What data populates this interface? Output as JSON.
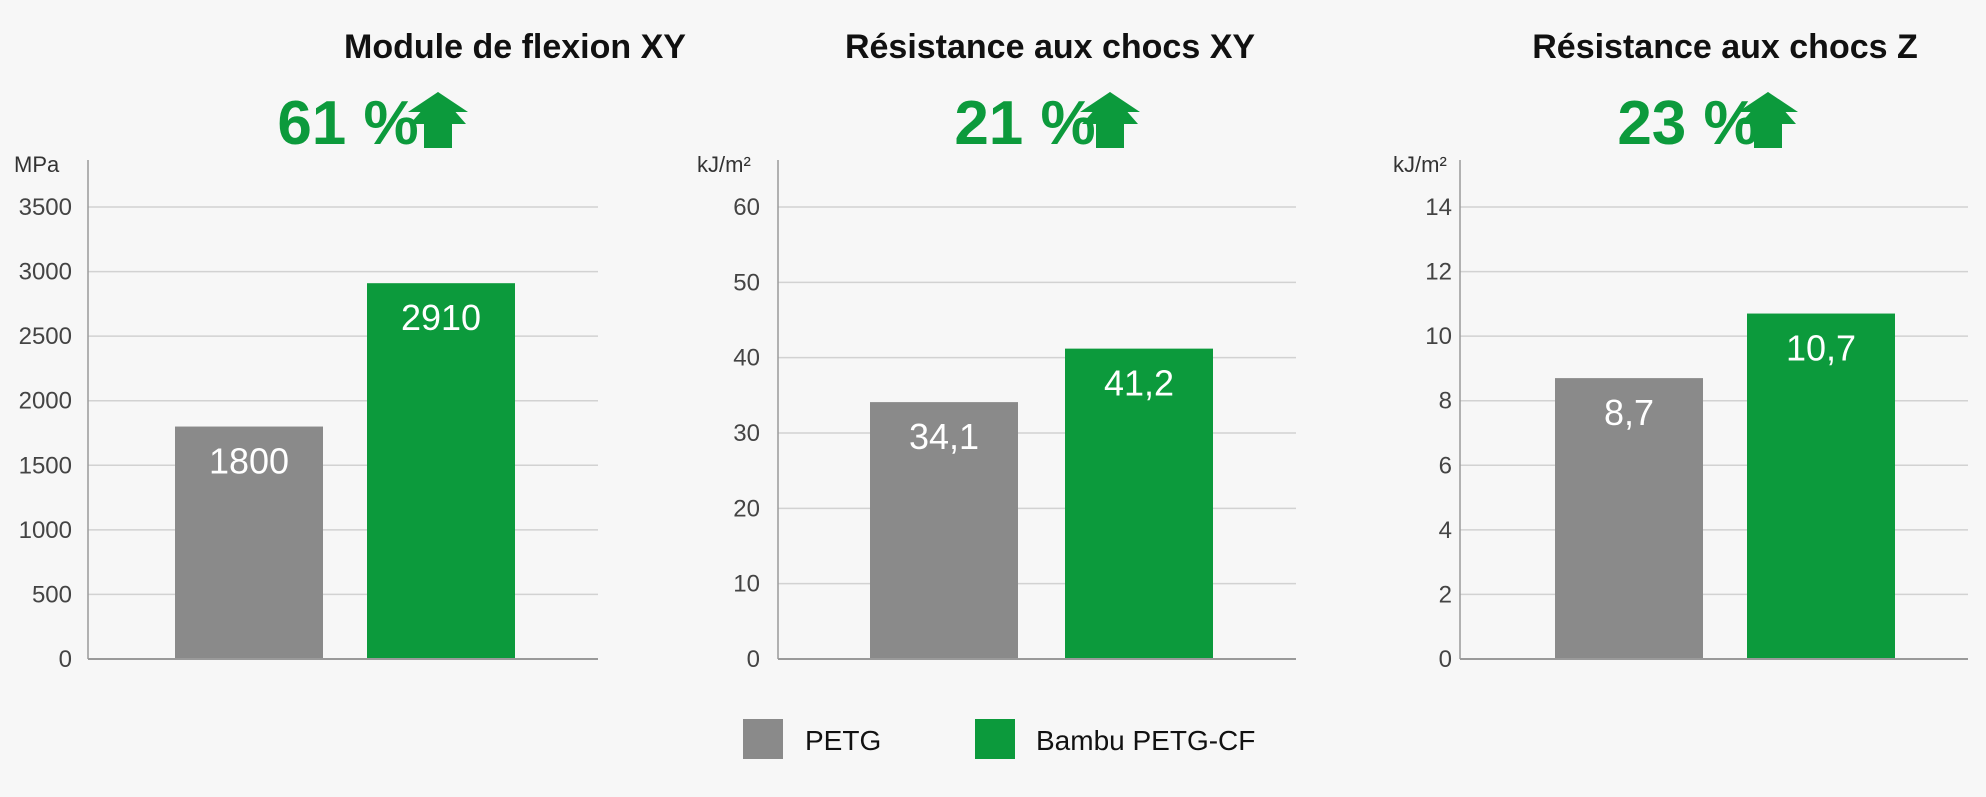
{
  "colors": {
    "petg": "#8a8a8a",
    "petg_cf": "#0c9a3c",
    "accent": "#0c9a3c",
    "grid": "#d2d2d2",
    "axis": "#9a9a9a"
  },
  "legend": {
    "petg": "PETG",
    "petg_cf": "Bambu PETG-CF"
  },
  "improvement_icon": "arrow-up-icon",
  "chart_data": [
    {
      "type": "bar",
      "title": "Module de flexion XY",
      "improvement": "61 %",
      "ylabel": "MPa",
      "ylim": [
        0,
        3500
      ],
      "yticks": [
        0,
        500,
        1000,
        1500,
        2000,
        2500,
        3000,
        3500
      ],
      "yticklabels": [
        "0",
        "500",
        "1000",
        "1500",
        "2000",
        "2500",
        "3000",
        "3500"
      ],
      "grid": true,
      "series": [
        {
          "name": "PETG",
          "value": 1800,
          "label": "1800"
        },
        {
          "name": "Bambu PETG-CF",
          "value": 2910,
          "label": "2910"
        }
      ]
    },
    {
      "type": "bar",
      "title": "Résistance aux chocs XY",
      "improvement": "21 %",
      "ylabel": "kJ/m²",
      "ylim": [
        0,
        60
      ],
      "yticks": [
        0,
        10,
        20,
        30,
        40,
        50,
        60
      ],
      "yticklabels": [
        "0",
        "10",
        "20",
        "30",
        "40",
        "50",
        "60"
      ],
      "grid": true,
      "series": [
        {
          "name": "PETG",
          "value": 34.1,
          "label": "34,1"
        },
        {
          "name": "Bambu PETG-CF",
          "value": 41.2,
          "label": "41,2"
        }
      ]
    },
    {
      "type": "bar",
      "title": "Résistance aux chocs Z",
      "improvement": "23 %",
      "ylabel": "kJ/m²",
      "ylim": [
        0,
        14
      ],
      "yticks": [
        0,
        2,
        4,
        6,
        8,
        10,
        12,
        14
      ],
      "yticklabels": [
        "0",
        "2",
        "4",
        "6",
        "8",
        "10",
        "12",
        "14"
      ],
      "grid": true,
      "series": [
        {
          "name": "PETG",
          "value": 8.7,
          "label": "8,7"
        },
        {
          "name": "Bambu PETG-CF",
          "value": 10.7,
          "label": "10,7"
        }
      ]
    }
  ]
}
